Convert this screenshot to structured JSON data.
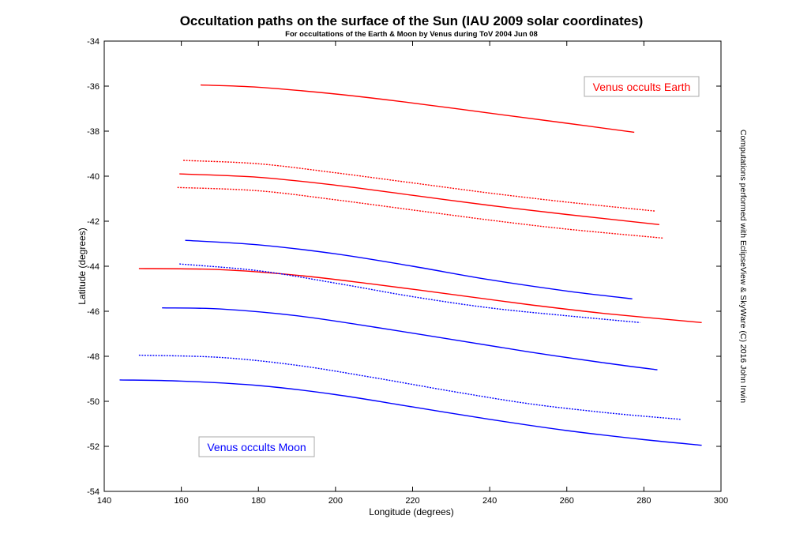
{
  "chart_data": {
    "type": "line",
    "title": "Occultation paths on the surface of the Sun (IAU 2009 solar coordinates)",
    "subtitle": "For occultations of the Earth & Moon by Venus during ToV 2004 Jun 08",
    "xlabel": "Longitude (degrees)",
    "ylabel": "Latitude (degrees)",
    "side_note": "Computations performed with EclipseView & SkyWare (C) 2016 John Irwin",
    "xlim": [
      140,
      300
    ],
    "ylim": [
      -54,
      -34
    ],
    "xticks": [
      "140",
      "160",
      "180",
      "200",
      "220",
      "240",
      "260",
      "280",
      "300"
    ],
    "yticks": [
      "-34",
      "-36",
      "-38",
      "-40",
      "-42",
      "-44",
      "-46",
      "-48",
      "-50",
      "-52",
      "-54"
    ],
    "grid": false,
    "annotations": [
      {
        "text": "Venus occults Earth",
        "color": "#ff0000",
        "position": "top-right"
      },
      {
        "text": "Venus occults Moon",
        "color": "#0000ff",
        "position": "bottom-left"
      }
    ],
    "series": [
      {
        "color": "#ff0000",
        "style": "solid",
        "x": [
          165,
          180,
          200,
          220,
          240,
          260,
          277.5
        ],
        "y": [
          -35.95,
          -36.05,
          -36.35,
          -36.75,
          -37.2,
          -37.65,
          -38.05
        ]
      },
      {
        "color": "#ff0000",
        "style": "dotted",
        "x": [
          160.5,
          180,
          200,
          220,
          240,
          260,
          283
        ],
        "y": [
          -39.3,
          -39.45,
          -39.85,
          -40.3,
          -40.75,
          -41.15,
          -41.55
        ]
      },
      {
        "color": "#ff0000",
        "style": "solid",
        "x": [
          159.5,
          180,
          200,
          220,
          240,
          260,
          284
        ],
        "y": [
          -39.9,
          -40.05,
          -40.4,
          -40.85,
          -41.3,
          -41.7,
          -42.15
        ]
      },
      {
        "color": "#ff0000",
        "style": "dotted",
        "x": [
          159,
          180,
          200,
          220,
          240,
          260,
          285
        ],
        "y": [
          -40.5,
          -40.65,
          -41.05,
          -41.5,
          -41.95,
          -42.35,
          -42.75
        ]
      },
      {
        "color": "#ff0000",
        "style": "solid",
        "x": [
          149,
          170,
          190,
          210,
          230,
          250,
          270,
          295
        ],
        "y": [
          -44.1,
          -44.15,
          -44.4,
          -44.8,
          -45.25,
          -45.7,
          -46.1,
          -46.5
        ]
      },
      {
        "color": "#0000ff",
        "style": "solid",
        "x": [
          161,
          180,
          200,
          220,
          240,
          260,
          277
        ],
        "y": [
          -42.85,
          -43.05,
          -43.45,
          -44.0,
          -44.6,
          -45.1,
          -45.45
        ]
      },
      {
        "color": "#0000ff",
        "style": "dotted",
        "x": [
          159.5,
          180,
          200,
          220,
          240,
          260,
          279
        ],
        "y": [
          -43.9,
          -44.2,
          -44.75,
          -45.35,
          -45.85,
          -46.2,
          -46.5
        ]
      },
      {
        "color": "#0000ff",
        "style": "solid",
        "x": [
          155,
          170,
          190,
          210,
          230,
          250,
          270,
          283.5
        ],
        "y": [
          -45.85,
          -45.9,
          -46.2,
          -46.7,
          -47.25,
          -47.8,
          -48.3,
          -48.6
        ]
      },
      {
        "color": "#0000ff",
        "style": "dotted",
        "x": [
          149,
          170,
          190,
          210,
          230,
          250,
          270,
          289.5
        ],
        "y": [
          -47.95,
          -48.05,
          -48.4,
          -48.95,
          -49.55,
          -50.1,
          -50.5,
          -50.8
        ]
      },
      {
        "color": "#0000ff",
        "style": "solid",
        "x": [
          144,
          160,
          180,
          200,
          220,
          240,
          260,
          280,
          295
        ],
        "y": [
          -49.05,
          -49.1,
          -49.3,
          -49.7,
          -50.25,
          -50.8,
          -51.3,
          -51.7,
          -51.95
        ]
      }
    ]
  }
}
